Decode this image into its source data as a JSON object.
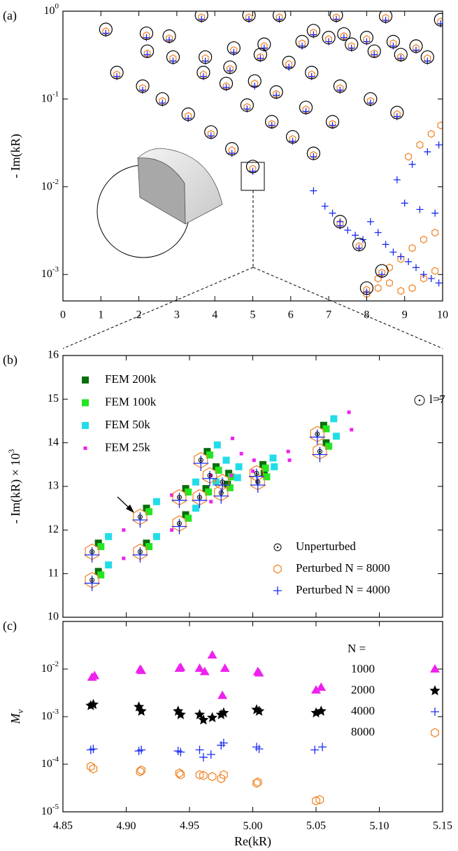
{
  "chart_data": [
    {
      "type": "scatter",
      "panel_label": "(a)",
      "ylabel": "- Im(kR)",
      "ylog": true,
      "xlim": [
        0,
        10
      ],
      "xticks": [
        0,
        1,
        2,
        3,
        4,
        5,
        6,
        7,
        8,
        9,
        10
      ],
      "ylim": [
        0.0005,
        1
      ],
      "yticks": [
        {
          "value": 0.001,
          "label": "10",
          "exponent": "-3"
        },
        {
          "value": 0.01,
          "label": "10",
          "exponent": "-2"
        },
        {
          "value": 0.1,
          "label": "10",
          "exponent": "-1"
        },
        {
          "value": 1,
          "label": "10",
          "exponent": "0"
        }
      ],
      "series": [
        {
          "marker": "hexagon",
          "color": "#f08020",
          "x": [
            1.13,
            2.2,
            2.8,
            3.65,
            4.9,
            5.7,
            7.2,
            8.5,
            9.95,
            1.42,
            2.1,
            2.62,
            3.3,
            3.9,
            4.45,
            5.0,
            2.22,
            2.9,
            3.7,
            4.3,
            4.85,
            5.5,
            6.05,
            6.6,
            3.75,
            4.4,
            5.05,
            5.62,
            6.4,
            7.1,
            4.5,
            5.2,
            5.95,
            6.55,
            7.3,
            8.1,
            8.8,
            5.3,
            6.3,
            7.0,
            7.6,
            8.2,
            8.9,
            9.6,
            6.6,
            7.4,
            8.0,
            8.7,
            9.3,
            7.3,
            7.8,
            8.4,
            8.0,
            8.3,
            8.6,
            8.9,
            9.2,
            9.5,
            9.8,
            8.0,
            8.3,
            8.6,
            8.9,
            9.2,
            9.5,
            9.8,
            9.1,
            9.4,
            9.7,
            9.95
          ],
          "values": [
            0.59,
            0.53,
            0.49,
            0.85,
            0.85,
            0.85,
            0.85,
            0.84,
            0.76,
            0.19,
            0.133,
            0.095,
            0.064,
            0.04,
            0.026,
            0.016,
            0.33,
            0.29,
            0.19,
            0.14,
            0.081,
            0.052,
            0.035,
            0.023,
            0.29,
            0.22,
            0.15,
            0.114,
            0.076,
            0.052,
            0.36,
            0.3,
            0.25,
            0.19,
            0.133,
            0.095,
            0.067,
            0.4,
            0.43,
            0.48,
            0.4,
            0.33,
            0.3,
            0.29,
            0.57,
            0.52,
            0.48,
            0.43,
            0.38,
            0.0038,
            0.0021,
            0.00105,
            0.00067,
            0.0009,
            0.0012,
            0.0015,
            0.002,
            0.0025,
            0.003,
            0.0006,
            0.0007,
            0.0008,
            0.00065,
            0.0007,
            0.0009,
            0.0011,
            0.022,
            0.03,
            0.04,
            0.05
          ]
        },
        {
          "marker": "plus",
          "color": "#1a2cf0",
          "x": [
            1.13,
            2.2,
            2.8,
            3.65,
            4.9,
            5.7,
            7.2,
            8.5,
            9.95,
            1.42,
            2.1,
            2.62,
            3.3,
            3.9,
            4.45,
            5.0,
            2.22,
            2.9,
            3.7,
            4.3,
            4.85,
            5.5,
            6.05,
            6.6,
            3.75,
            4.4,
            5.05,
            5.62,
            6.4,
            7.1,
            4.5,
            5.2,
            5.95,
            6.55,
            7.3,
            8.1,
            8.8,
            5.3,
            6.3,
            7.0,
            7.6,
            8.2,
            8.9,
            9.6,
            6.6,
            7.4,
            8.0,
            8.7,
            9.3,
            7.3,
            7.8,
            8.4,
            8.0,
            6.6,
            6.9,
            7.1,
            7.3,
            7.5,
            7.7,
            7.9,
            8.1,
            8.3,
            8.5,
            8.7,
            8.9,
            9.1,
            9.3,
            9.5,
            9.7,
            9.9,
            8.8,
            9.2,
            9.6,
            9.9,
            9.0,
            9.4,
            9.8
          ],
          "values": [
            0.56,
            0.5,
            0.47,
            0.81,
            0.81,
            0.81,
            0.81,
            0.79,
            0.72,
            0.18,
            0.126,
            0.09,
            0.06,
            0.038,
            0.024,
            0.015,
            0.32,
            0.27,
            0.18,
            0.135,
            0.077,
            0.05,
            0.033,
            0.022,
            0.27,
            0.21,
            0.14,
            0.11,
            0.072,
            0.05,
            0.34,
            0.29,
            0.23,
            0.18,
            0.126,
            0.09,
            0.063,
            0.38,
            0.4,
            0.45,
            0.38,
            0.32,
            0.29,
            0.27,
            0.54,
            0.5,
            0.45,
            0.4,
            0.36,
            0.0036,
            0.002,
            0.001,
            0.00063,
            0.009,
            0.006,
            0.005,
            0.004,
            0.0032,
            0.0028,
            0.0025,
            0.004,
            0.003,
            0.0022,
            0.0018,
            0.0016,
            0.0014,
            0.0012,
            0.001,
            0.0009,
            0.0008,
            0.012,
            0.018,
            0.025,
            0.03,
            0.0065,
            0.0055,
            0.005
          ]
        },
        {
          "marker": "circle",
          "color": "#000000",
          "x": [
            1.13,
            2.2,
            2.8,
            3.65,
            4.9,
            5.7,
            7.2,
            8.5,
            9.95,
            1.42,
            2.1,
            2.62,
            3.3,
            3.9,
            4.45,
            5.0,
            2.22,
            2.9,
            3.7,
            4.3,
            4.85,
            5.5,
            6.05,
            6.6,
            3.75,
            4.4,
            5.05,
            5.62,
            6.4,
            7.1,
            4.5,
            5.2,
            5.95,
            6.55,
            7.3,
            8.1,
            8.8,
            5.3,
            6.3,
            7.0,
            7.6,
            8.2,
            8.9,
            9.6,
            6.6,
            7.4,
            8.0,
            8.7,
            9.3,
            7.3,
            7.8,
            8.4,
            8.0
          ],
          "values": [
            0.62,
            0.56,
            0.52,
            0.9,
            0.9,
            0.9,
            0.9,
            0.88,
            0.8,
            0.2,
            0.14,
            0.1,
            0.067,
            0.042,
            0.027,
            0.017,
            0.35,
            0.3,
            0.2,
            0.15,
            0.085,
            0.055,
            0.037,
            0.024,
            0.3,
            0.23,
            0.16,
            0.12,
            0.08,
            0.055,
            0.38,
            0.32,
            0.26,
            0.2,
            0.14,
            0.1,
            0.07,
            0.42,
            0.45,
            0.5,
            0.42,
            0.35,
            0.32,
            0.3,
            0.6,
            0.55,
            0.5,
            0.45,
            0.4,
            0.004,
            0.0022,
            0.0011,
            0.0007
          ]
        }
      ]
    },
    {
      "type": "scatter",
      "panel_label": "(b)",
      "ylabel": {
        "text": "- Im(kR) × 10",
        "sup": "3"
      },
      "ylog": false,
      "xlim": [
        4.85,
        5.15
      ],
      "ylim": [
        10,
        16
      ],
      "yticks": [
        10,
        11,
        12,
        13,
        14,
        15,
        16
      ],
      "annotations": [
        {
          "text": "l=7",
          "marker": "circle-dot"
        }
      ],
      "series": [
        {
          "name": "FEM 200k",
          "marker": "square",
          "color": "#0a6e0a",
          "legend": "upper left",
          "x": [
            4.878,
            4.878,
            4.916,
            4.916,
            4.947,
            4.947,
            4.963,
            4.964,
            4.971,
            4.98,
            4.981,
            5.008,
            5.009,
            5.056,
            5.058
          ],
          "values": [
            11.7,
            11.05,
            12.5,
            11.7,
            12.95,
            12.35,
            12.95,
            13.8,
            13.45,
            13.05,
            13.3,
            13.5,
            13.3,
            14.4,
            14.0
          ]
        },
        {
          "name": "FEM 100k",
          "marker": "square",
          "color": "#22e622",
          "legend": "upper left",
          "x": [
            4.88,
            4.88,
            4.918,
            4.918,
            4.949,
            4.949,
            4.965,
            4.966,
            4.973,
            4.982,
            4.983,
            5.01,
            5.011,
            5.058,
            5.06
          ],
          "values": [
            11.62,
            10.97,
            12.42,
            11.62,
            12.87,
            12.27,
            12.87,
            13.72,
            13.37,
            12.97,
            13.22,
            13.42,
            13.22,
            14.32,
            13.92
          ]
        },
        {
          "name": "FEM 50k",
          "marker": "square",
          "color": "#22dde8",
          "legend": "upper left",
          "x": [
            4.886,
            4.886,
            4.924,
            4.924,
            4.955,
            4.955,
            4.971,
            4.972,
            4.979,
            4.988,
            4.989,
            5.016,
            5.017,
            5.064,
            5.066
          ],
          "values": [
            11.85,
            11.2,
            12.65,
            11.85,
            13.1,
            12.5,
            13.1,
            13.95,
            13.6,
            13.2,
            13.45,
            13.65,
            13.45,
            14.55,
            14.15
          ]
        },
        {
          "name": "FEM 25k",
          "marker": "square",
          "color": "#ee22ee",
          "legend": "upper left",
          "x": [
            4.898,
            4.898,
            4.936,
            4.936,
            4.967,
            4.967,
            4.983,
            4.984,
            4.991,
            5.0,
            5.001,
            5.028,
            5.029,
            5.076,
            5.078
          ],
          "values": [
            12.0,
            11.35,
            12.8,
            12.0,
            13.25,
            12.65,
            13.25,
            14.1,
            13.75,
            13.35,
            13.6,
            13.8,
            13.6,
            14.7,
            14.3
          ]
        },
        {
          "name": "Perturbed N = 8000",
          "marker": "hexagon",
          "color": "#f08020",
          "legend": "lower right",
          "x": [
            4.873,
            4.873,
            4.911,
            4.911,
            4.942,
            4.942,
            4.958,
            4.959,
            4.966,
            4.975,
            4.976,
            5.003,
            5.004,
            5.051,
            5.053
          ],
          "values": [
            11.5,
            10.85,
            12.3,
            11.5,
            12.75,
            12.15,
            12.75,
            13.6,
            13.25,
            12.85,
            13.1,
            13.3,
            13.1,
            14.2,
            13.8
          ]
        },
        {
          "name": "Perturbed N = 4000",
          "marker": "plus",
          "color": "#1a2cf0",
          "legend": "lower right",
          "x": [
            4.873,
            4.873,
            4.911,
            4.911,
            4.942,
            4.942,
            4.958,
            4.959,
            4.966,
            4.975,
            4.976,
            5.003,
            5.004,
            5.051,
            5.053
          ],
          "values": [
            11.43,
            10.78,
            12.23,
            11.43,
            12.68,
            12.08,
            12.68,
            13.53,
            13.18,
            12.78,
            13.03,
            13.23,
            13.03,
            14.13,
            13.73
          ]
        },
        {
          "name": "Unperturbed",
          "marker": "circle-dot",
          "color": "#000000",
          "legend": "lower right",
          "x": [
            4.873,
            4.873,
            4.911,
            4.911,
            4.942,
            4.942,
            4.958,
            4.959,
            4.966,
            4.975,
            4.976,
            5.003,
            5.004,
            5.051,
            5.053
          ],
          "values": [
            11.5,
            10.85,
            12.3,
            11.5,
            12.75,
            12.15,
            12.75,
            13.6,
            13.25,
            12.85,
            13.1,
            13.3,
            13.1,
            14.2,
            13.8
          ]
        }
      ]
    },
    {
      "type": "scatter",
      "panel_label": "(c)",
      "ylabel": {
        "text": "M",
        "sub": "ν"
      },
      "xlabel": "Re(kR)",
      "ylog": true,
      "legend": "upper right",
      "legend_title": "N =",
      "xlim": [
        4.85,
        5.15
      ],
      "xticks": [
        4.85,
        {
          "value": 4.9,
          "label": "4.90"
        },
        4.95,
        {
          "value": 5.0,
          "label": "5.00"
        },
        5.05,
        {
          "value": 5.1,
          "label": "5.10"
        },
        5.15
      ],
      "ylim": [
        1e-05,
        0.1
      ],
      "yticks": [
        {
          "value": 1e-05,
          "label": "10",
          "exponent": "-5"
        },
        {
          "value": 0.0001,
          "label": "10",
          "exponent": "-4"
        },
        {
          "value": 0.001,
          "label": "10",
          "exponent": "-3"
        },
        {
          "value": 0.01,
          "label": "10",
          "exponent": "-2"
        }
      ],
      "series": [
        {
          "name": "1000",
          "marker": "triangle",
          "color": "#ee22ee",
          "x": [
            4.873,
            4.875,
            4.911,
            4.912,
            4.942,
            4.943,
            4.958,
            4.962,
            4.968,
            4.976,
            4.978,
            5.004,
            5.005,
            5.05,
            5.054
          ],
          "values": [
            0.0065,
            0.007,
            0.0095,
            0.009,
            0.01,
            0.0105,
            0.01,
            0.0085,
            0.019,
            0.0027,
            0.01,
            0.0085,
            0.008,
            0.0035,
            0.004
          ]
        },
        {
          "name": "2000",
          "marker": "star",
          "color": "#000000",
          "x": [
            4.872,
            4.874,
            4.91,
            4.912,
            4.941,
            4.943,
            4.958,
            4.961,
            4.968,
            4.975,
            4.977,
            5.003,
            5.005,
            5.05,
            5.054
          ],
          "values": [
            0.0017,
            0.0018,
            0.0016,
            0.0013,
            0.0013,
            0.0011,
            0.0011,
            0.00085,
            0.00095,
            0.0011,
            0.0012,
            0.0014,
            0.0013,
            0.0012,
            0.0013
          ]
        },
        {
          "name": "4000",
          "marker": "plus",
          "color": "#1a2cf0",
          "x": [
            4.872,
            4.874,
            4.91,
            4.912,
            4.941,
            4.943,
            4.958,
            4.961,
            4.967,
            4.975,
            4.977,
            5.003,
            5.005,
            5.049,
            5.055
          ],
          "values": [
            0.0002,
            0.00021,
            0.00019,
            0.0002,
            0.00019,
            0.00018,
            0.0002,
            0.00014,
            0.00016,
            0.00025,
            0.00028,
            0.00023,
            0.00021,
            0.0002,
            0.00023
          ]
        },
        {
          "name": "8000",
          "marker": "hexagon",
          "color": "#f08020",
          "x": [
            4.872,
            4.874,
            4.911,
            4.912,
            4.942,
            4.943,
            4.958,
            4.961,
            4.968,
            4.975,
            4.977,
            5.003,
            5.004,
            5.05,
            5.053
          ],
          "values": [
            9e-05,
            8e-05,
            7e-05,
            7.5e-05,
            6.5e-05,
            6e-05,
            6e-05,
            5.8e-05,
            5.5e-05,
            5e-05,
            6e-05,
            4e-05,
            4.2e-05,
            1.7e-05,
            1.8e-05
          ]
        }
      ]
    }
  ]
}
